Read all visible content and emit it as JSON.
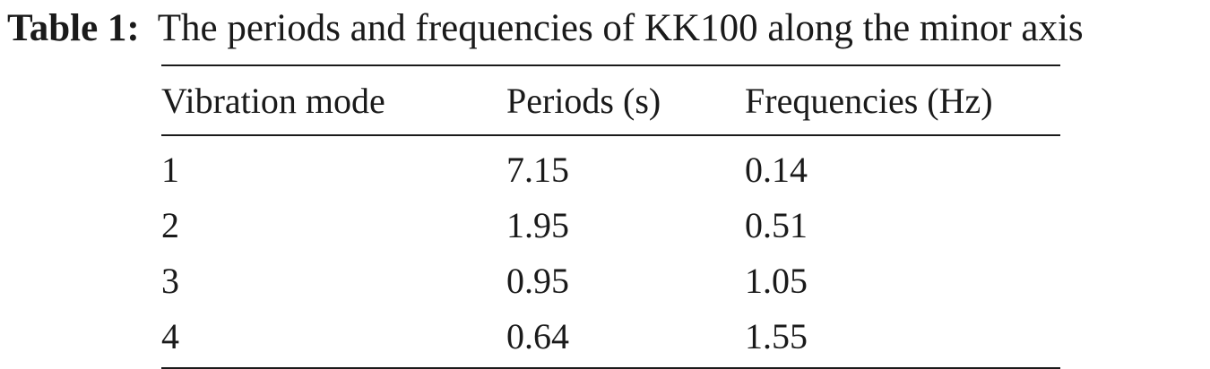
{
  "caption": {
    "label": "Table 1:",
    "text": "The periods and frequencies of KK100 along the minor axis"
  },
  "table": {
    "headers": [
      "Vibration mode",
      "Periods (s)",
      "Frequencies (Hz)"
    ],
    "rows": [
      [
        "1",
        "7.15",
        "0.14"
      ],
      [
        "2",
        "1.95",
        "0.51"
      ],
      [
        "3",
        "0.95",
        "1.05"
      ],
      [
        "4",
        "0.64",
        "1.55"
      ]
    ]
  }
}
